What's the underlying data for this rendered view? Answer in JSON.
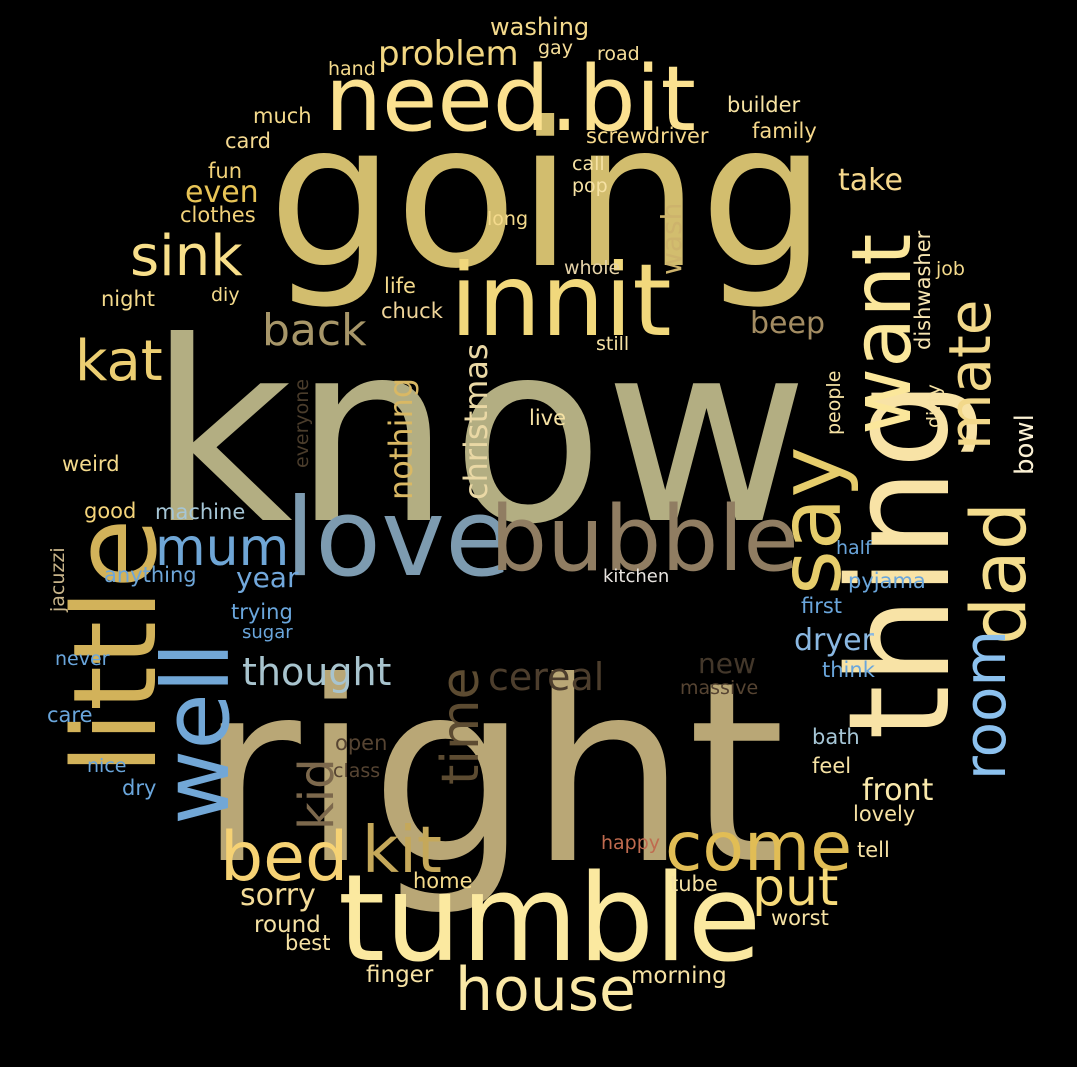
{
  "words": [
    {
      "text": "know",
      "color": "#b3ae82"
    },
    {
      "text": "right",
      "color": "#b9a776"
    },
    {
      "text": "going",
      "color": "#d2bd6e"
    },
    {
      "text": "tumble",
      "color": "#fbe9a0"
    },
    {
      "text": "thing",
      "color": "#f8e3a6"
    },
    {
      "text": "little",
      "color": "#d2b25a"
    },
    {
      "text": "love",
      "color": "#7d9bb0"
    },
    {
      "text": "bubble",
      "color": "#907d62"
    },
    {
      "text": "innit",
      "color": "#f1d87c"
    },
    {
      "text": "need.bit",
      "color": "#fbe190"
    },
    {
      "text": "well",
      "color": "#72a7d6"
    },
    {
      "text": "say",
      "color": "#e6cd6c"
    },
    {
      "text": "want",
      "color": "#fbe79b"
    },
    {
      "text": "dad",
      "color": "#f4dd8e"
    },
    {
      "text": "come",
      "color": "#e1bd55"
    },
    {
      "text": "bed",
      "color": "#f6d274"
    },
    {
      "text": "house",
      "color": "#fae8a6"
    },
    {
      "text": "kit",
      "color": "#c5a85a"
    },
    {
      "text": "room",
      "color": "#8cc1ee"
    },
    {
      "text": "mate",
      "color": "#f2d88a"
    },
    {
      "text": "sink",
      "color": "#f8df8a"
    },
    {
      "text": "kat",
      "color": "#ecce72"
    },
    {
      "text": "mum",
      "color": "#6fa6d6"
    },
    {
      "text": "put",
      "color": "#f6da7a"
    },
    {
      "text": "time",
      "color": "#5c4b31"
    },
    {
      "text": "kid",
      "color": "#7c684c"
    },
    {
      "text": "back",
      "color": "#a79669"
    },
    {
      "text": "thought",
      "color": "#a8c4ce"
    },
    {
      "text": "cereal",
      "color": "#4d3e2d"
    },
    {
      "text": "problem",
      "color": "#f2d782"
    },
    {
      "text": "christmas",
      "color": "#ead8a5"
    },
    {
      "text": "nothing",
      "color": "#d9b864"
    },
    {
      "text": "take",
      "color": "#f6d88c"
    },
    {
      "text": "even",
      "color": "#e8c456"
    },
    {
      "text": "beep",
      "color": "#a38c62"
    },
    {
      "text": "dryer",
      "color": "#8ab8e2"
    },
    {
      "text": "front",
      "color": "#fbeaac"
    },
    {
      "text": "sorry",
      "color": "#f4dc98"
    },
    {
      "text": "year",
      "color": "#72a8dc"
    },
    {
      "text": "wash",
      "color": "#cdb36c"
    },
    {
      "text": "bowl",
      "color": "#fbf1d4"
    },
    {
      "text": "new",
      "color": "#43372a"
    },
    {
      "text": "washing",
      "color": "#f4da8c"
    },
    {
      "text": "builder",
      "color": "#f8e4a4"
    },
    {
      "text": "family",
      "color": "#f6d88c"
    },
    {
      "text": "screwdriver",
      "color": "#f6d98c"
    },
    {
      "text": "card",
      "color": "#f4d991"
    },
    {
      "text": "much",
      "color": "#f4da8c"
    },
    {
      "text": "hand",
      "color": "#f4da8c"
    },
    {
      "text": "gay",
      "color": "#f6de9a"
    },
    {
      "text": "road",
      "color": "#f6de9a"
    },
    {
      "text": "fun",
      "color": "#f2d27a"
    },
    {
      "text": "clothes",
      "color": "#f2d27a"
    },
    {
      "text": "call",
      "color": "#f6e2a4"
    },
    {
      "text": "pop",
      "color": "#f6e2a4"
    },
    {
      "text": "long",
      "color": "#f4da8c"
    },
    {
      "text": "whole",
      "color": "#e4d2a8"
    },
    {
      "text": "job",
      "color": "#f4da8c"
    },
    {
      "text": "dishwasher",
      "color": "#f6e4b0"
    },
    {
      "text": "night",
      "color": "#f4da8c"
    },
    {
      "text": "diy",
      "color": "#f4da8c"
    },
    {
      "text": "life",
      "color": "#f4da8c"
    },
    {
      "text": "chuck",
      "color": "#f0d59a"
    },
    {
      "text": "still",
      "color": "#f6e2a4"
    },
    {
      "text": "people",
      "color": "#f6e2a4"
    },
    {
      "text": "dirty",
      "color": "#f6e2a4"
    },
    {
      "text": "everyone",
      "color": "#4a3c2b"
    },
    {
      "text": "live",
      "color": "#f6e2a4"
    },
    {
      "text": "weird",
      "color": "#f4da8c"
    },
    {
      "text": "good",
      "color": "#f4d47a"
    },
    {
      "text": "machine",
      "color": "#a6c6d6"
    },
    {
      "text": "jacuzzi",
      "color": "#c9b58a"
    },
    {
      "text": "anything",
      "color": "#6ea6d8"
    },
    {
      "text": "half",
      "color": "#6aa6dc"
    },
    {
      "text": "kitchen",
      "color": "#e8e4e0"
    },
    {
      "text": "pyjama",
      "color": "#6aa6dc"
    },
    {
      "text": "first",
      "color": "#6aa6dc"
    },
    {
      "text": "trying",
      "color": "#6aa6dc"
    },
    {
      "text": "sugar",
      "color": "#6aa6dc"
    },
    {
      "text": "never",
      "color": "#6aa6dc"
    },
    {
      "text": "think",
      "color": "#6aa6dc"
    },
    {
      "text": "massive",
      "color": "#564432"
    },
    {
      "text": "care",
      "color": "#6aa6dc"
    },
    {
      "text": "open",
      "color": "#564432"
    },
    {
      "text": "bath",
      "color": "#a6c6d6"
    },
    {
      "text": "class",
      "color": "#564432"
    },
    {
      "text": "feel",
      "color": "#f6e2a4"
    },
    {
      "text": "nice",
      "color": "#6aa6dc"
    },
    {
      "text": "dry",
      "color": "#6aa6dc"
    },
    {
      "text": "lovely",
      "color": "#f6e2a4"
    },
    {
      "text": "happy",
      "color": "#c06b4f"
    },
    {
      "text": "tell",
      "color": "#f6e2a4"
    },
    {
      "text": "home",
      "color": "#f4da8c"
    },
    {
      "text": "tube",
      "color": "#f6e2a4"
    },
    {
      "text": "round",
      "color": "#f6e2a4"
    },
    {
      "text": "worst",
      "color": "#f6e2a4"
    },
    {
      "text": "best",
      "color": "#f6e2a4"
    },
    {
      "text": "finger",
      "color": "#f6e2a4"
    },
    {
      "text": "morning",
      "color": "#f6e2a4"
    }
  ]
}
